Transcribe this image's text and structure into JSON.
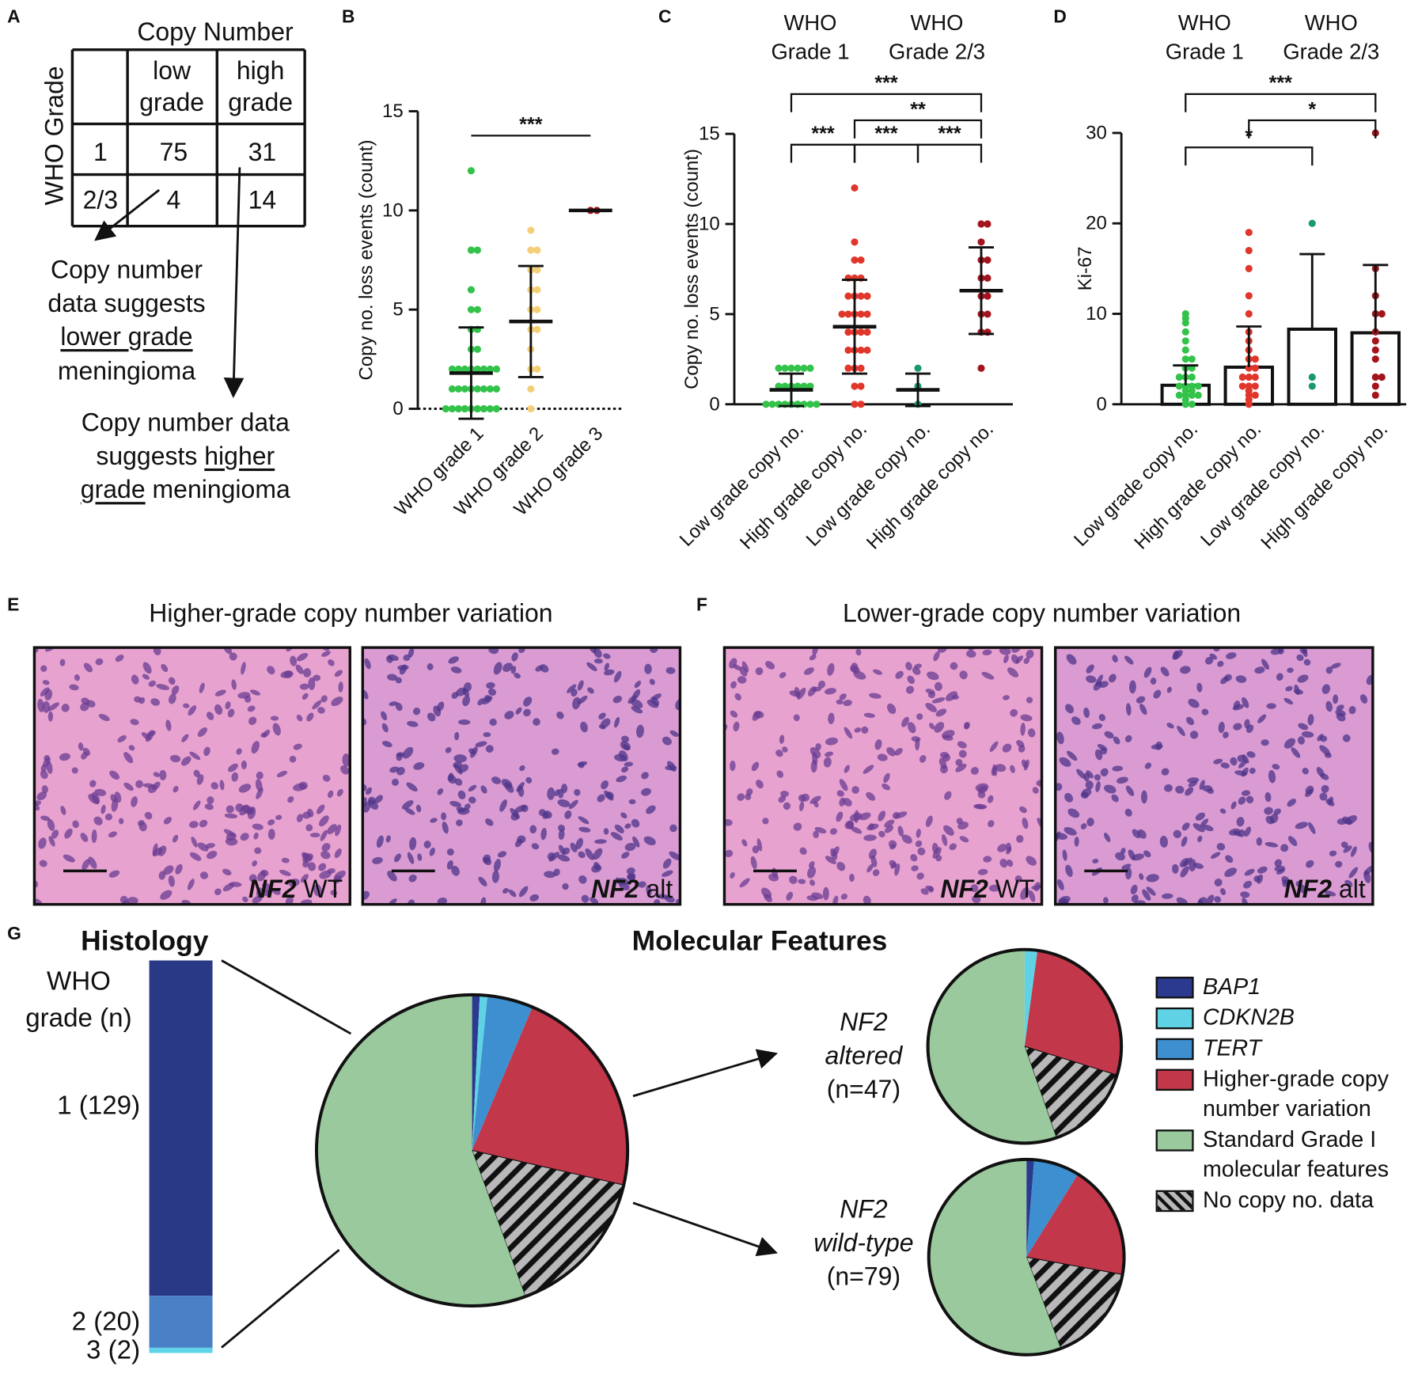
{
  "panel_labels": [
    "A",
    "B",
    "C",
    "D",
    "E",
    "F",
    "G"
  ],
  "table": {
    "title": "Copy Number",
    "row_header": "WHO Grade",
    "columns": [
      [
        "low",
        "grade"
      ],
      [
        "high",
        "grade"
      ]
    ],
    "rows": [
      {
        "grade": "1",
        "values": [
          75,
          31
        ]
      },
      {
        "grade": "2/3",
        "values": [
          4,
          14
        ]
      }
    ]
  },
  "annotations": {
    "lower": [
      [
        "Copy number"
      ],
      [
        "data suggests"
      ],
      [
        "lower grade"
      ],
      [
        "meningioma"
      ]
    ],
    "higher": [
      [
        "Copy number data"
      ],
      [
        "suggests",
        "higher"
      ],
      [
        "grade",
        "meningioma"
      ]
    ]
  },
  "chart_data": [
    {
      "type": "dotplot",
      "y_label": "Copy no. loss events (count)",
      "categories": [
        "WHO grade 1",
        "WHO grade 2",
        "WHO grade 3"
      ],
      "ylim": [
        0,
        15
      ],
      "yticks": [
        0,
        5,
        10,
        15
      ],
      "groups": [
        {
          "color": "#33c24a",
          "values": [
            0,
            0,
            0,
            0,
            0,
            0,
            0,
            0,
            0,
            0,
            0,
            0,
            1,
            1,
            1,
            1,
            1,
            1,
            1,
            1,
            2,
            2,
            2,
            2,
            2,
            2,
            2,
            2,
            3,
            3,
            4,
            4,
            5,
            5,
            6,
            8,
            8,
            12
          ],
          "mean": 1.8,
          "sd": 2.3
        },
        {
          "color": "#f5cf78",
          "values": [
            0,
            1,
            2,
            2,
            3,
            4,
            4,
            5,
            5,
            6,
            6,
            7,
            7,
            8,
            8,
            9
          ],
          "mean": 4.4,
          "sd": 2.8
        },
        {
          "color": "#a3141c",
          "values": [
            10,
            10
          ],
          "mean": 10,
          "sd": 0
        }
      ],
      "significance": [
        {
          "from": 0,
          "to": 2,
          "label": "***"
        }
      ]
    },
    {
      "type": "dotplot",
      "y_label": "Copy no. loss events (count)",
      "header": [
        [
          "WHO",
          "Grade 1"
        ],
        [
          "WHO",
          "Grade 2/3"
        ]
      ],
      "categories": [
        "Low grade copy no.",
        "High grade copy no.",
        "Low grade copy no.",
        "High grade copy no."
      ],
      "ylim": [
        0,
        15
      ],
      "yticks": [
        0,
        5,
        10,
        15
      ],
      "groups": [
        {
          "color": "#33c24a",
          "values": [
            0,
            0,
            0,
            0,
            0,
            0,
            0,
            0,
            0,
            0,
            1,
            1,
            1,
            1,
            1,
            1,
            2,
            2,
            2,
            2,
            2,
            2
          ],
          "mean": 0.8,
          "sd": 0.9
        },
        {
          "color": "#e0362b",
          "values": [
            0,
            0,
            1,
            1,
            2,
            2,
            2,
            3,
            3,
            3,
            3,
            4,
            4,
            4,
            4,
            5,
            5,
            5,
            5,
            5,
            6,
            6,
            6,
            6,
            7,
            7,
            7,
            8,
            8,
            9,
            12
          ],
          "mean": 4.3,
          "sd": 2.6
        },
        {
          "color": "#1a9a6a",
          "values": [
            0,
            1,
            2
          ],
          "mean": 0.8,
          "sd": 0.9
        },
        {
          "color": "#a3141c",
          "values": [
            2,
            4,
            4,
            5,
            5,
            6,
            6,
            7,
            7,
            8,
            8,
            9,
            10,
            10
          ],
          "mean": 6.3,
          "sd": 2.4
        }
      ],
      "significance": [
        {
          "from": 0,
          "to": 1,
          "label": "***"
        },
        {
          "from": 1,
          "to": 2,
          "label": "***"
        },
        {
          "from": 2,
          "to": 3,
          "label": "***"
        },
        {
          "from": 1,
          "to": 3,
          "label": "**"
        },
        {
          "from": 0,
          "to": 3,
          "label": "***"
        }
      ]
    },
    {
      "type": "bardot",
      "y_label": "Ki-67",
      "header": [
        [
          "WHO",
          "Grade 1"
        ],
        [
          "WHO",
          "Grade 2/3"
        ]
      ],
      "categories": [
        "Low grade copy no.",
        "High grade copy no.",
        "Low grade copy no.",
        "High grade copy no."
      ],
      "ylim": [
        0,
        30
      ],
      "yticks": [
        0,
        10,
        20,
        30
      ],
      "groups": [
        {
          "color": "#33c24a",
          "values": [
            0,
            0,
            0.5,
            1,
            1,
            1,
            1,
            1.5,
            1.5,
            2,
            2,
            2,
            2,
            3,
            3,
            3,
            4,
            4,
            5,
            5,
            6,
            7,
            8,
            9,
            9.5,
            10
          ],
          "mean": 2.1,
          "sd": 2.2
        },
        {
          "color": "#e0362b",
          "values": [
            0,
            0.5,
            1,
            1,
            1.5,
            2,
            2,
            2,
            3,
            3,
            3,
            4,
            4,
            5,
            5,
            6,
            7,
            8,
            10,
            12,
            15,
            17,
            19
          ],
          "mean": 4.1,
          "sd": 4.5
        },
        {
          "color": "#1a9a6a",
          "values": [
            2,
            3,
            20
          ],
          "mean": 8.3,
          "sd": 8.3
        },
        {
          "color": "#a3141c",
          "values": [
            1,
            2,
            3,
            3,
            5,
            6,
            7,
            8,
            10,
            10,
            12,
            15,
            30
          ],
          "mean": 7.9,
          "sd": 7.5
        }
      ],
      "significance": [
        {
          "from": 0,
          "to": 2,
          "label": "*"
        },
        {
          "from": 1,
          "to": 3,
          "label": "*"
        },
        {
          "from": 0,
          "to": 3,
          "label": "***"
        }
      ]
    },
    {
      "type": "stacked_bar",
      "title": "Histology",
      "y_label": [
        "WHO",
        "grade (n)"
      ],
      "values": [
        129,
        20,
        2
      ],
      "value_labels": [
        "1 (129)",
        "2 (20)",
        "3 (2)"
      ],
      "colors": [
        "#2a3985",
        "#4a80c6",
        "#5fd3ea"
      ]
    },
    {
      "type": "pie",
      "title": "Molecular Features",
      "categories": [
        {
          "name": "BAP1",
          "color": "#2b3a8f",
          "italic": true
        },
        {
          "name": "CDKN2B",
          "color": "#5fd3e5",
          "italic": true
        },
        {
          "name": "TERT",
          "color": "#3d8fd0",
          "italic": true
        },
        {
          "name": "Higher-grade copy number variation",
          "color": "#c2374a",
          "italic": false
        },
        {
          "name": "No copy no. data",
          "color": "#b9b9b9",
          "italic": false,
          "hatch": true
        },
        {
          "name": "Standard Grade I molecular features",
          "color": "#99c99c",
          "italic": false
        }
      ],
      "pies": [
        {
          "values": [
            1,
            1,
            6,
            28,
            20,
            70
          ]
        },
        {
          "label": [
            "NF2",
            "altered",
            "(n=47)"
          ],
          "values": [
            0,
            1,
            0,
            13,
            7,
            26
          ]
        },
        {
          "label": [
            "NF2",
            "wild-type",
            "(n=79)"
          ],
          "values": [
            1,
            0,
            6,
            15,
            13,
            44
          ]
        }
      ]
    }
  ],
  "images": [
    {
      "title": "Higher-grade copy number variation",
      "panels": [
        {
          "gene": "NF2",
          "status": "WT"
        },
        {
          "gene": "NF2",
          "status": "alt"
        }
      ]
    },
    {
      "title": "Lower-grade copy number variation",
      "panels": [
        {
          "gene": "NF2",
          "status": "WT"
        },
        {
          "gene": "NF2",
          "status": "alt"
        }
      ]
    }
  ]
}
